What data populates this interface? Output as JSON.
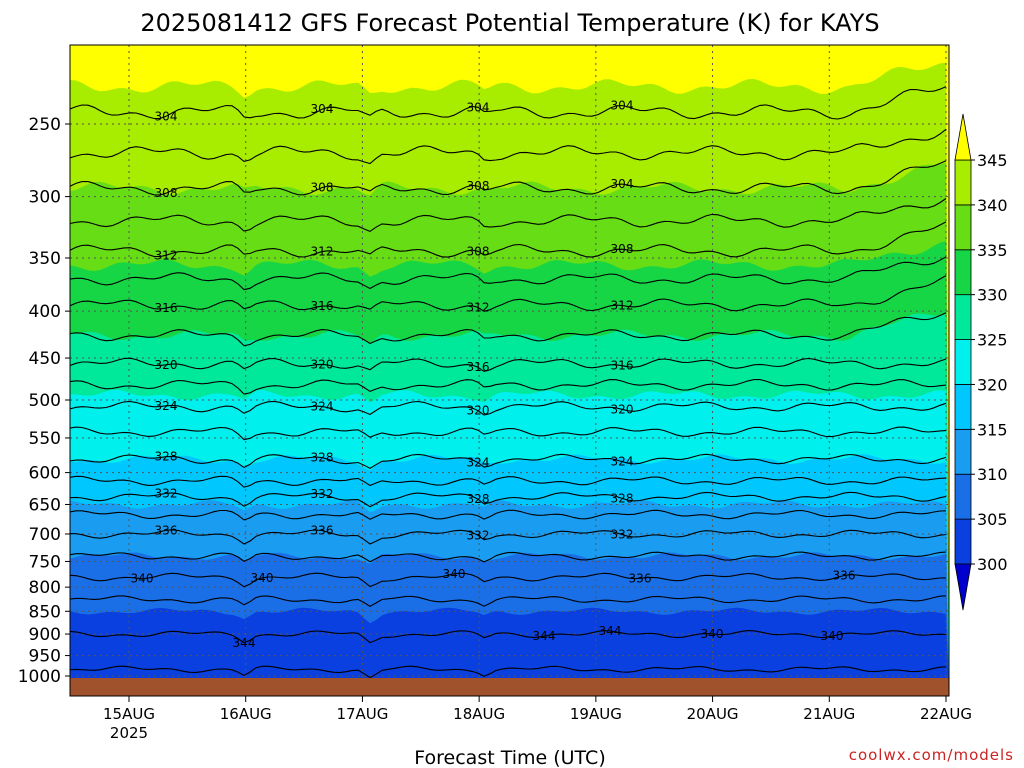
{
  "chart_data": {
    "type": "heatmap",
    "title": "2025081412 GFS Forecast Potential Temperature (K) for KAYS",
    "xlabel": "Forecast Time (UTC)",
    "ylabel": "",
    "credit": "coolwx.com/models",
    "x_ticks": [
      {
        "label": "15AUG",
        "sub": "2025",
        "day": 1.0
      },
      {
        "label": "16AUG",
        "sub": "",
        "day": 2.0
      },
      {
        "label": "17AUG",
        "sub": "",
        "day": 3.0
      },
      {
        "label": "18AUG",
        "sub": "",
        "day": 4.0
      },
      {
        "label": "19AUG",
        "sub": "",
        "day": 5.0
      },
      {
        "label": "20AUG",
        "sub": "",
        "day": 6.0
      },
      {
        "label": "21AUG",
        "sub": "",
        "day": 7.0
      },
      {
        "label": "22AUG",
        "sub": "",
        "day": 8.0
      }
    ],
    "xlim": [
      0.5,
      8.0
    ],
    "y_ticks": [
      250,
      300,
      350,
      400,
      450,
      500,
      550,
      600,
      650,
      700,
      750,
      800,
      850,
      900,
      950,
      1000
    ],
    "ylim": [
      200,
      1020
    ],
    "y_scale": "log-pressure",
    "colorbar": {
      "levels": [
        300,
        305,
        310,
        315,
        320,
        325,
        330,
        335,
        340,
        345
      ],
      "labels": [
        "300",
        "305",
        "310",
        "315",
        "320",
        "325",
        "330",
        "335",
        "340",
        "345"
      ],
      "colors": [
        "#0000cc",
        "#0a3fe0",
        "#1a6fe6",
        "#1a9cf0",
        "#00c8ff",
        "#00f0ee",
        "#00e89a",
        "#16d646",
        "#66dd14",
        "#a8ec00",
        "#ffff00"
      ],
      "extend": "both"
    },
    "contour_interval": 2,
    "contour_labels": [
      "344",
      "344",
      "344",
      "340",
      "340",
      "340",
      "340",
      "340",
      "336",
      "336",
      "336",
      "336",
      "332",
      "332",
      "332",
      "332",
      "328",
      "328",
      "328",
      "328",
      "324",
      "324",
      "324",
      "324",
      "320",
      "320",
      "320",
      "320",
      "316",
      "316",
      "316",
      "316",
      "312",
      "312",
      "312",
      "312",
      "308",
      "308",
      "308",
      "308",
      "308",
      "304",
      "304",
      "304",
      "304",
      "304"
    ],
    "profile": [
      {
        "p": 1000,
        "theta": 301.5
      },
      {
        "p": 950,
        "theta": 303
      },
      {
        "p": 900,
        "theta": 304
      },
      {
        "p": 850,
        "theta": 305
      },
      {
        "p": 800,
        "theta": 307
      },
      {
        "p": 750,
        "theta": 309.5
      },
      {
        "p": 700,
        "theta": 312
      },
      {
        "p": 650,
        "theta": 315
      },
      {
        "p": 600,
        "theta": 319
      },
      {
        "p": 550,
        "theta": 321.5
      },
      {
        "p": 500,
        "theta": 324.5
      },
      {
        "p": 450,
        "theta": 328.5
      },
      {
        "p": 400,
        "theta": 331.5
      },
      {
        "p": 350,
        "theta": 335.5
      },
      {
        "p": 300,
        "theta": 339.5
      },
      {
        "p": 250,
        "theta": 343.5
      },
      {
        "p": 220,
        "theta": 345.5
      }
    ],
    "ground_color": "#a0522d"
  }
}
